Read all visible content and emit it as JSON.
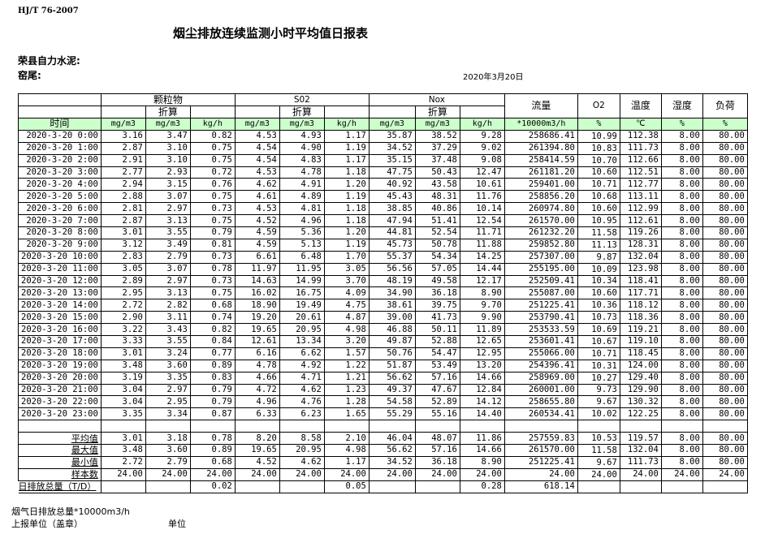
{
  "standard": "HJ/T  76-2007",
  "title": "烟尘排放连续监测小时平均值日报表",
  "company": "荣县自力水泥:",
  "kiln": "窑尾:",
  "date": "2020年3月20日",
  "header": {
    "particulate": "颗粒物",
    "so2": "S02",
    "nox": "Nox",
    "converted": "折算",
    "flow": "流量",
    "o2": "O2",
    "temperature": "温度",
    "humidity": "湿度",
    "load": "负荷",
    "time": "时间",
    "units": [
      "mg/m3",
      "mg/m3",
      "kg/h",
      "mg/m3",
      "mg/m3",
      "kg/h",
      "mg/m3",
      "mg/m3",
      "kg/h",
      "*10000m3/h",
      "%",
      "℃",
      "%",
      "%"
    ]
  },
  "rows": [
    [
      "2020-3-20 0:00",
      "3.16",
      "3.47",
      "0.82",
      "4.53",
      "4.93",
      "1.17",
      "35.87",
      "38.52",
      "9.28",
      "258686.41",
      "10.99",
      "112.38",
      "8.00",
      "80.00"
    ],
    [
      "2020-3-20 1:00",
      "2.87",
      "3.10",
      "0.75",
      "4.54",
      "4.90",
      "1.19",
      "34.52",
      "37.29",
      "9.02",
      "261394.80",
      "10.83",
      "111.73",
      "8.00",
      "80.00"
    ],
    [
      "2020-3-20 2:00",
      "2.91",
      "3.10",
      "0.75",
      "4.54",
      "4.83",
      "1.17",
      "35.15",
      "37.48",
      "9.08",
      "258414.59",
      "10.70",
      "112.66",
      "8.00",
      "80.00"
    ],
    [
      "2020-3-20 3:00",
      "2.77",
      "2.93",
      "0.72",
      "4.53",
      "4.78",
      "1.18",
      "47.75",
      "50.43",
      "12.47",
      "261181.20",
      "10.60",
      "112.51",
      "8.00",
      "80.00"
    ],
    [
      "2020-3-20 4:00",
      "2.94",
      "3.15",
      "0.76",
      "4.62",
      "4.91",
      "1.20",
      "40.92",
      "43.58",
      "10.61",
      "259401.00",
      "10.71",
      "112.77",
      "8.00",
      "80.00"
    ],
    [
      "2020-3-20 5:00",
      "2.88",
      "3.07",
      "0.75",
      "4.61",
      "4.89",
      "1.19",
      "45.43",
      "48.31",
      "11.76",
      "258856.20",
      "10.68",
      "113.11",
      "8.00",
      "80.00"
    ],
    [
      "2020-3-20 6:00",
      "2.81",
      "2.97",
      "0.73",
      "4.53",
      "4.81",
      "1.18",
      "38.85",
      "40.86",
      "10.14",
      "260974.80",
      "10.60",
      "112.99",
      "8.00",
      "80.00"
    ],
    [
      "2020-3-20 7:00",
      "2.87",
      "3.13",
      "0.75",
      "4.52",
      "4.96",
      "1.18",
      "47.94",
      "51.41",
      "12.54",
      "261570.00",
      "10.95",
      "112.61",
      "8.00",
      "80.00"
    ],
    [
      "2020-3-20 8:00",
      "3.01",
      "3.55",
      "0.79",
      "4.59",
      "5.36",
      "1.20",
      "44.81",
      "52.54",
      "11.71",
      "261232.20",
      "11.58",
      "119.26",
      "8.00",
      "80.00"
    ],
    [
      "2020-3-20 9:00",
      "3.12",
      "3.49",
      "0.81",
      "4.59",
      "5.13",
      "1.19",
      "45.73",
      "50.78",
      "11.88",
      "259852.80",
      "11.13",
      "128.31",
      "8.00",
      "80.00"
    ],
    [
      "2020-3-20 10:00",
      "2.83",
      "2.79",
      "0.73",
      "6.61",
      "6.48",
      "1.70",
      "55.37",
      "54.34",
      "14.25",
      "257307.00",
      "9.87",
      "132.04",
      "8.00",
      "80.00"
    ],
    [
      "2020-3-20 11:00",
      "3.05",
      "3.07",
      "0.78",
      "11.97",
      "11.95",
      "3.05",
      "56.56",
      "57.05",
      "14.44",
      "255195.00",
      "10.09",
      "123.98",
      "8.00",
      "80.00"
    ],
    [
      "2020-3-20 12:00",
      "2.89",
      "2.97",
      "0.73",
      "14.63",
      "14.99",
      "3.70",
      "48.19",
      "49.58",
      "12.17",
      "252509.41",
      "10.34",
      "118.41",
      "8.00",
      "80.00"
    ],
    [
      "2020-3-20 13:00",
      "2.95",
      "3.13",
      "0.75",
      "16.02",
      "16.75",
      "4.09",
      "34.90",
      "36.18",
      "8.90",
      "255087.00",
      "10.60",
      "117.71",
      "8.00",
      "80.00"
    ],
    [
      "2020-3-20 14:00",
      "2.72",
      "2.82",
      "0.68",
      "18.90",
      "19.49",
      "4.75",
      "38.61",
      "39.75",
      "9.70",
      "251225.41",
      "10.36",
      "118.12",
      "8.00",
      "80.00"
    ],
    [
      "2020-3-20 15:00",
      "2.90",
      "3.11",
      "0.74",
      "19.20",
      "20.61",
      "4.87",
      "39.00",
      "41.73",
      "9.90",
      "253790.41",
      "10.73",
      "118.36",
      "8.00",
      "80.00"
    ],
    [
      "2020-3-20 16:00",
      "3.22",
      "3.43",
      "0.82",
      "19.65",
      "20.95",
      "4.98",
      "46.88",
      "50.11",
      "11.89",
      "253533.59",
      "10.69",
      "119.21",
      "8.00",
      "80.00"
    ],
    [
      "2020-3-20 17:00",
      "3.33",
      "3.55",
      "0.84",
      "12.61",
      "13.34",
      "3.20",
      "49.87",
      "52.88",
      "12.65",
      "253601.41",
      "10.67",
      "119.10",
      "8.00",
      "80.00"
    ],
    [
      "2020-3-20 18:00",
      "3.01",
      "3.24",
      "0.77",
      "6.16",
      "6.62",
      "1.57",
      "50.76",
      "54.47",
      "12.95",
      "255066.00",
      "10.71",
      "118.45",
      "8.00",
      "80.00"
    ],
    [
      "2020-3-20 19:00",
      "3.48",
      "3.60",
      "0.89",
      "4.78",
      "4.92",
      "1.22",
      "51.87",
      "53.49",
      "13.20",
      "254396.41",
      "10.31",
      "124.00",
      "8.00",
      "80.00"
    ],
    [
      "2020-3-20 20:00",
      "3.19",
      "3.35",
      "0.83",
      "4.66",
      "4.71",
      "1.21",
      "56.62",
      "57.16",
      "14.66",
      "258969.00",
      "10.27",
      "129.40",
      "8.00",
      "80.00"
    ],
    [
      "2020-3-20 21:00",
      "3.04",
      "2.97",
      "0.79",
      "4.72",
      "4.62",
      "1.23",
      "49.37",
      "47.67",
      "12.84",
      "260001.00",
      "9.73",
      "129.90",
      "8.00",
      "80.00"
    ],
    [
      "2020-3-20 22:00",
      "3.04",
      "2.95",
      "0.79",
      "4.96",
      "4.76",
      "1.28",
      "54.58",
      "52.89",
      "14.12",
      "258655.80",
      "9.67",
      "130.32",
      "8.00",
      "80.00"
    ],
    [
      "2020-3-20 23:00",
      "3.35",
      "3.34",
      "0.87",
      "6.33",
      "6.23",
      "1.65",
      "55.29",
      "55.16",
      "14.40",
      "260534.41",
      "10.02",
      "122.25",
      "8.00",
      "80.00"
    ]
  ],
  "summary": [
    [
      "平均值",
      "3.01",
      "3.18",
      "0.78",
      "8.20",
      "8.58",
      "2.10",
      "46.04",
      "48.07",
      "11.86",
      "257559.83",
      "10.53",
      "119.57",
      "8.00",
      "80.00"
    ],
    [
      "最大值",
      "3.48",
      "3.60",
      "0.89",
      "19.65",
      "20.95",
      "4.98",
      "56.62",
      "57.16",
      "14.66",
      "261570.00",
      "11.58",
      "132.04",
      "8.00",
      "80.00"
    ],
    [
      "最小值",
      "2.72",
      "2.79",
      "0.68",
      "4.52",
      "4.62",
      "1.17",
      "34.52",
      "36.18",
      "8.90",
      "251225.41",
      "9.67",
      "111.73",
      "8.00",
      "80.00"
    ],
    [
      "样本数",
      "24.00",
      "24.00",
      "24.00",
      "24.00",
      "24.00",
      "24.00",
      "24.00",
      "24.00",
      "24.00",
      "24.00",
      "24.00",
      "24.00",
      "24.00",
      "24.00"
    ],
    [
      "日排放总量（T/D）",
      "",
      "",
      "0.02",
      "",
      "",
      "0.05",
      "",
      "",
      "0.28",
      "618.14",
      "",
      "",
      "",
      ""
    ]
  ],
  "footer": {
    "flue_gas_total": "烟气日排放总量*10000m3/h",
    "reporting_unit": "上报单位（盖章）",
    "unit": "单位"
  }
}
